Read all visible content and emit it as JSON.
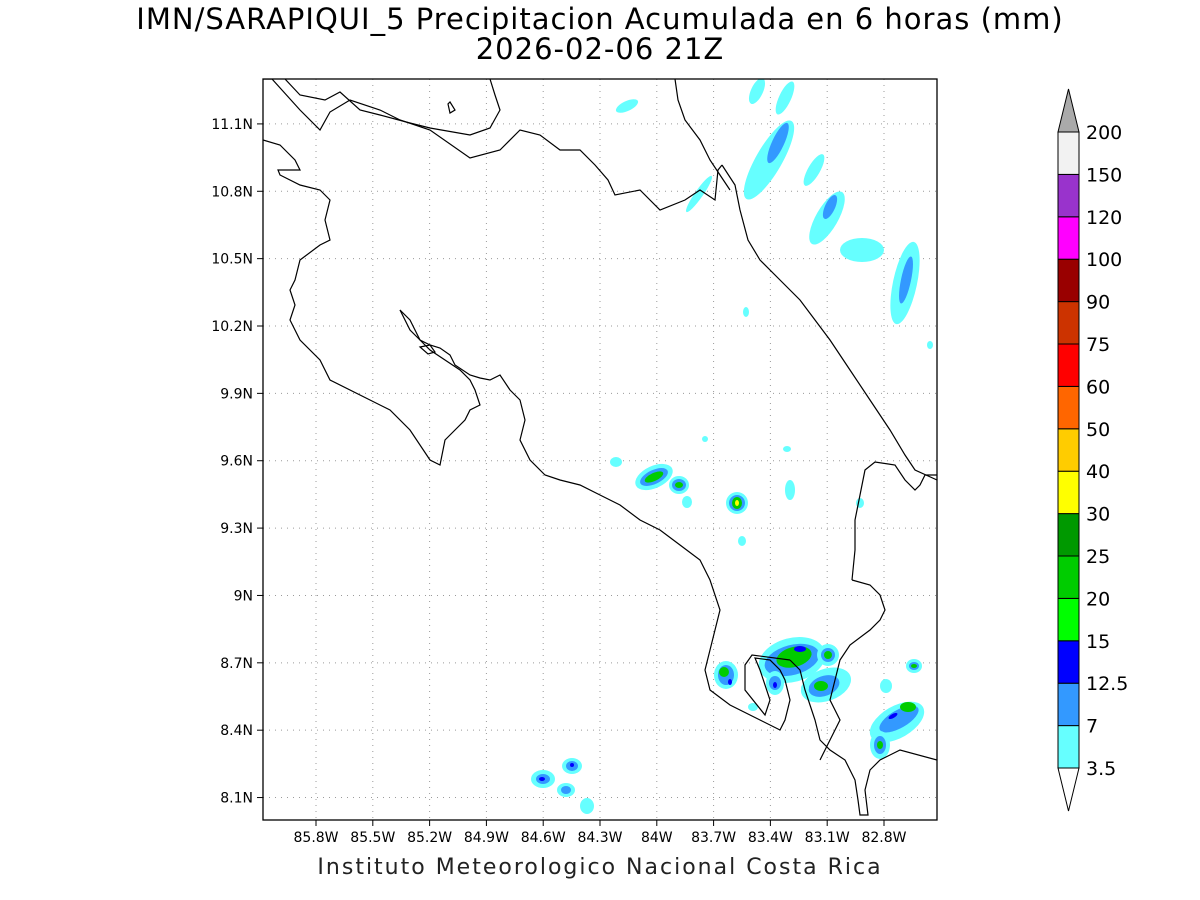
{
  "title": {
    "line1": "IMN/SARAPIQUI_5 Precipitacion Acumulada en 6 horas (mm)",
    "line2": "2026-02-06 21Z"
  },
  "footer": "Instituto Meteorologico Nacional Costa Rica",
  "map": {
    "lat_range": [
      8.0,
      11.3
    ],
    "lon_range": [
      -86.08,
      -82.52
    ],
    "lat_ticks": [
      {
        "value": 11.1,
        "label": "11.1N"
      },
      {
        "value": 10.8,
        "label": "10.8N"
      },
      {
        "value": 10.5,
        "label": "10.5N"
      },
      {
        "value": 10.2,
        "label": "10.2N"
      },
      {
        "value": 9.9,
        "label": "9.9N"
      },
      {
        "value": 9.6,
        "label": "9.6N"
      },
      {
        "value": 9.3,
        "label": "9.3N"
      },
      {
        "value": 9.0,
        "label": "9N"
      },
      {
        "value": 8.7,
        "label": "8.7N"
      },
      {
        "value": 8.4,
        "label": "8.4N"
      },
      {
        "value": 8.1,
        "label": "8.1N"
      }
    ],
    "lon_ticks": [
      {
        "value": -85.8,
        "label": "85.8W"
      },
      {
        "value": -85.5,
        "label": "85.5W"
      },
      {
        "value": -85.2,
        "label": "85.2W"
      },
      {
        "value": -84.9,
        "label": "84.9W"
      },
      {
        "value": -84.6,
        "label": "84.6W"
      },
      {
        "value": -84.3,
        "label": "84.3W"
      },
      {
        "value": -84.0,
        "label": "84W"
      },
      {
        "value": -83.7,
        "label": "83.7W"
      },
      {
        "value": -83.4,
        "label": "83.4W"
      },
      {
        "value": -83.1,
        "label": "83.1W"
      },
      {
        "value": -82.8,
        "label": "82.8W"
      }
    ],
    "grid": true
  },
  "colorbar": {
    "levels": [
      "3.5",
      "7",
      "12.5",
      "15",
      "20",
      "25",
      "30",
      "40",
      "50",
      "60",
      "75",
      "90",
      "100",
      "120",
      "150",
      "200"
    ],
    "colors": [
      "#66ffff",
      "#3399ff",
      "#0000ff",
      "#00ff00",
      "#00cc00",
      "#009900",
      "#ffff00",
      "#ffcc00",
      "#ff6600",
      "#ff0000",
      "#cc3300",
      "#990000",
      "#ff00ff",
      "#9933cc",
      "#f2f2f2"
    ],
    "low_color": "#ffffff",
    "high_color": "#aaaaaa"
  }
}
